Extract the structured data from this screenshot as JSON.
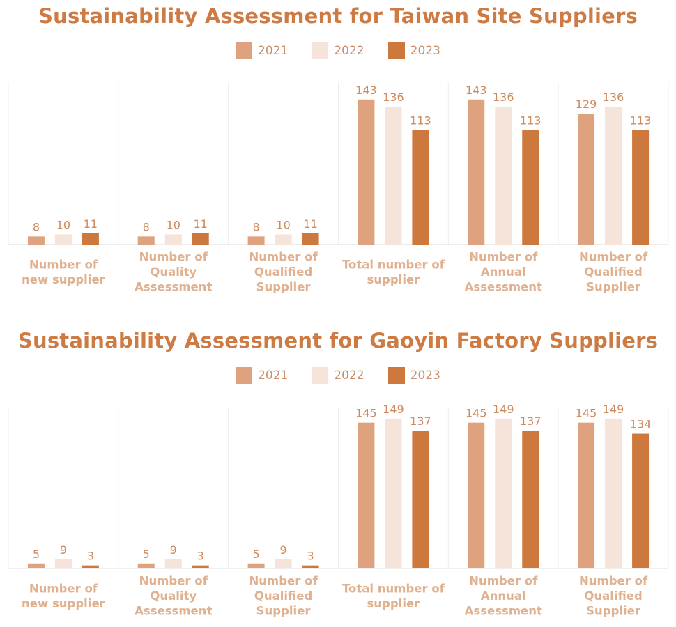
{
  "chart_data": [
    {
      "type": "bar",
      "title": "Sustainability Assessment for Taiwan Site Suppliers",
      "categories": [
        [
          "Number of",
          "new supplier"
        ],
        [
          "Number of",
          "Quality",
          "Assessment"
        ],
        [
          "Number of",
          "Qualified",
          "Supplier"
        ],
        [
          "Total number of",
          "supplier"
        ],
        [
          "Number of",
          "Annual",
          "Assessment"
        ],
        [
          "Number of",
          "Qualified",
          "Supplier"
        ]
      ],
      "series": [
        {
          "name": "2021",
          "color": "#dfa27e",
          "values": [
            8,
            8,
            8,
            143,
            143,
            129
          ]
        },
        {
          "name": "2022",
          "color": "#f6e3d9",
          "values": [
            10,
            10,
            10,
            136,
            136,
            136
          ]
        },
        {
          "name": "2023",
          "color": "#cd783d",
          "values": [
            11,
            11,
            11,
            113,
            113,
            113
          ]
        }
      ],
      "ylim": [
        0,
        160
      ],
      "legend": "top-center",
      "grid": false
    },
    {
      "type": "bar",
      "title": "Sustainability Assessment for Gaoyin Factory Suppliers",
      "categories": [
        [
          "Number of",
          "new supplier"
        ],
        [
          "Number of",
          "Quality",
          "Assessment"
        ],
        [
          "Number of",
          "Qualified",
          "Supplier"
        ],
        [
          "Total number of",
          "supplier"
        ],
        [
          "Number of",
          "Annual",
          "Assessment"
        ],
        [
          "Number of",
          "Qualified",
          "Supplier"
        ]
      ],
      "series": [
        {
          "name": "2021",
          "color": "#dfa27e",
          "values": [
            5,
            5,
            5,
            145,
            145,
            145
          ]
        },
        {
          "name": "2022",
          "color": "#f6e3d9",
          "values": [
            9,
            9,
            9,
            149,
            149,
            149
          ]
        },
        {
          "name": "2023",
          "color": "#cd783d",
          "values": [
            3,
            3,
            3,
            137,
            137,
            134
          ]
        }
      ],
      "ylim": [
        0,
        160
      ],
      "legend": "top-center",
      "grid": false
    }
  ]
}
